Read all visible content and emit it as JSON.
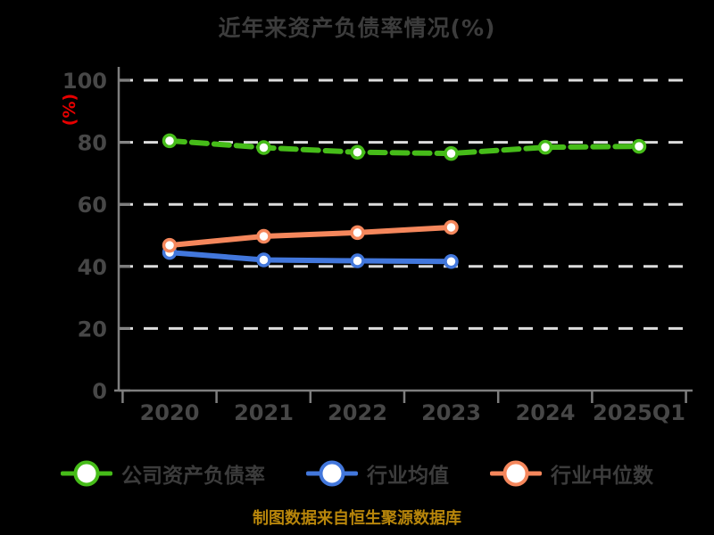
{
  "chart_data": {
    "type": "line",
    "title": "近年来资产负债率情况(%)",
    "ylabel": "(%)",
    "xlabel": "",
    "categories": [
      "2020",
      "2021",
      "2022",
      "2023",
      "2024",
      "2025Q1"
    ],
    "yticks": [
      0,
      20,
      40,
      60,
      80,
      100
    ],
    "ylim": [
      0,
      100
    ],
    "grid": "horizontal-dashed-white",
    "legend_position": "bottom",
    "series": [
      {
        "name": "公司资产负债率",
        "color": "#46BC19",
        "line_style": "dashed",
        "marker": "circle-white-fill",
        "values": [
          80.5,
          78.3,
          76.8,
          76.4,
          78.4,
          78.7
        ]
      },
      {
        "name": "行业均值",
        "color": "#4277DC",
        "line_style": "solid",
        "marker": "circle-white-fill",
        "values": [
          44.5,
          42.1,
          41.8,
          41.6,
          null,
          null
        ]
      },
      {
        "name": "行业中位数",
        "color": "#F5875C",
        "line_style": "solid",
        "marker": "circle-white-fill",
        "values": [
          46.8,
          49.7,
          50.9,
          52.6,
          null,
          null
        ]
      }
    ],
    "source_note": "制图数据来自恒生聚源数据库"
  },
  "colors": {
    "background": "#000000",
    "title_text": "#3C3C3C",
    "tick_text": "#474747",
    "legend_text": "#3C3C3C",
    "axis_line": "#7E7E7E",
    "gridline": "#DCDCDC",
    "ylabel_text": "#E60000",
    "source_text": "#B8860B"
  }
}
